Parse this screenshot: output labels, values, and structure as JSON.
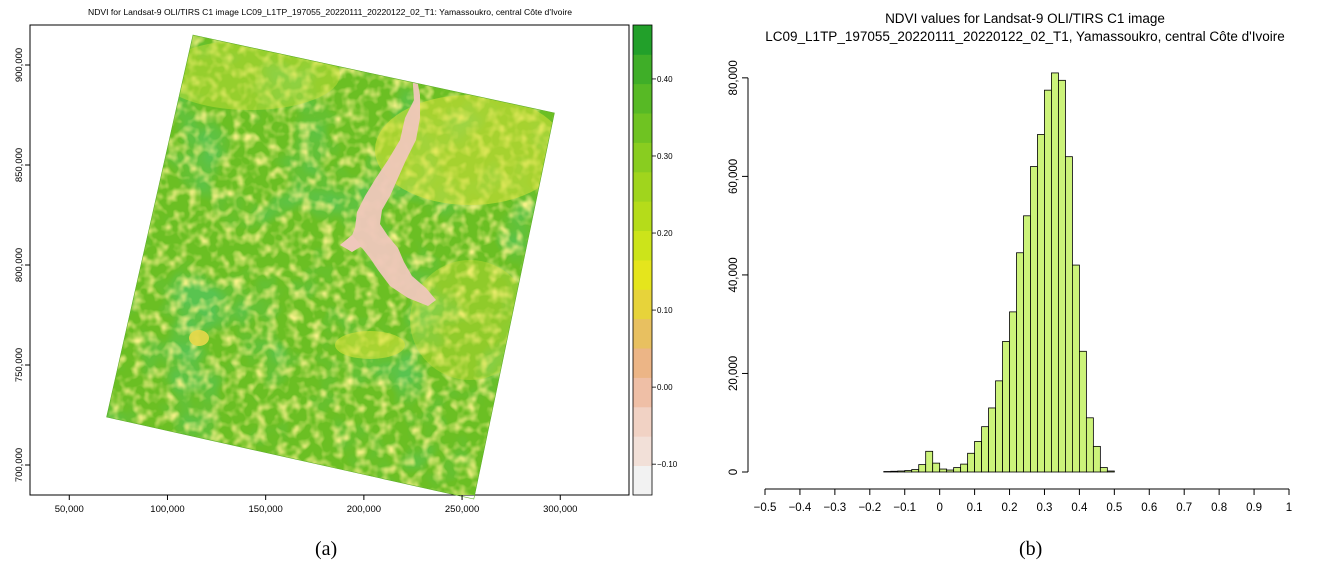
{
  "chart_data": [
    {
      "panel": "(a)",
      "type": "heatmap",
      "title": "NDVI for Landsat-9 OLI/TIRS C1 image LC09_L1TP_197055_20220111_20220122_02_T1: Yamassoukro, central Côte d'Ivoire",
      "xlabel": "",
      "ylabel": "",
      "xlim": [
        30000,
        335000
      ],
      "ylim": [
        685000,
        920000
      ],
      "x_ticks": [
        "50,000",
        "100,000",
        "150,000",
        "200,000",
        "250,000",
        "300,000"
      ],
      "x_tick_values": [
        50000,
        100000,
        150000,
        200000,
        250000,
        300000
      ],
      "y_ticks": [
        "700,000",
        "750,000",
        "800,000",
        "850,000",
        "900,000"
      ],
      "y_tick_values": [
        700000,
        750000,
        800000,
        850000,
        900000
      ],
      "legend": {
        "range": [
          -0.14,
          0.47
        ],
        "tick_labels": [
          "−0.10",
          "0.00",
          "0.10",
          "0.20",
          "0.30",
          "0.40"
        ],
        "tick_values": [
          -0.1,
          0.0,
          0.1,
          0.2,
          0.3,
          0.4
        ],
        "colors": [
          "#f2f2f2",
          "#f2e0d8",
          "#f1d2c4",
          "#efbfa6",
          "#ecb586",
          "#e8c060",
          "#e7d33a",
          "#e5e51c",
          "#cce41a",
          "#b5dc1a",
          "#a0d51d",
          "#89cd20",
          "#6fc322",
          "#57b925",
          "#3fae28",
          "#22a02a"
        ]
      },
      "scene_corners": [
        [
          113000,
          915000
        ],
        [
          297000,
          876000
        ],
        [
          256000,
          683000
        ],
        [
          69000,
          724000
        ]
      ],
      "grid": false
    },
    {
      "panel": "(b)",
      "type": "bar",
      "title": "NDVI values for Landsat-9 OLI/TIRS C1 image",
      "subtitle": "LC09_L1TP_197055_20220111_20220122_02_T1, Yamassoukro, central Côte d'Ivoire",
      "xlabel": "",
      "ylabel": "",
      "xlim": [
        -0.5,
        1.0
      ],
      "ylim": [
        0,
        82000
      ],
      "x_ticks": [
        "−0.5",
        "−0.4",
        "−0.3",
        "−0.2",
        "−0.1",
        "0",
        "0.1",
        "0.2",
        "0.3",
        "0.4",
        "0.5",
        "0.6",
        "0.7",
        "0.8",
        "0.9",
        "1"
      ],
      "x_tick_values": [
        -0.5,
        -0.4,
        -0.3,
        -0.2,
        -0.1,
        0,
        0.1,
        0.2,
        0.3,
        0.4,
        0.5,
        0.6,
        0.7,
        0.8,
        0.9,
        1.0
      ],
      "y_ticks": [
        "0",
        "20,000",
        "40,000",
        "60,000",
        "80,000"
      ],
      "y_tick_values": [
        0,
        20000,
        40000,
        60000,
        80000
      ],
      "bin_width": 0.02,
      "bin_starts": [
        -0.16,
        -0.14,
        -0.12,
        -0.1,
        -0.08,
        -0.06,
        -0.04,
        -0.02,
        0.0,
        0.02,
        0.04,
        0.06,
        0.08,
        0.1,
        0.12,
        0.14,
        0.16,
        0.18,
        0.2,
        0.22,
        0.24,
        0.26,
        0.28,
        0.3,
        0.32,
        0.34,
        0.36,
        0.38,
        0.4,
        0.42,
        0.44,
        0.46,
        0.48
      ],
      "values": [
        100,
        150,
        200,
        300,
        500,
        1500,
        4200,
        1800,
        600,
        400,
        900,
        1600,
        3800,
        6200,
        9200,
        13000,
        18500,
        26500,
        32500,
        44500,
        52000,
        62000,
        68500,
        77500,
        81000,
        79500,
        64000,
        42000,
        24500,
        11000,
        5200,
        900,
        200
      ],
      "bar_color": "#ccf37a",
      "grid": false
    }
  ],
  "captions": {
    "a": "(a)",
    "b": "(b)"
  }
}
